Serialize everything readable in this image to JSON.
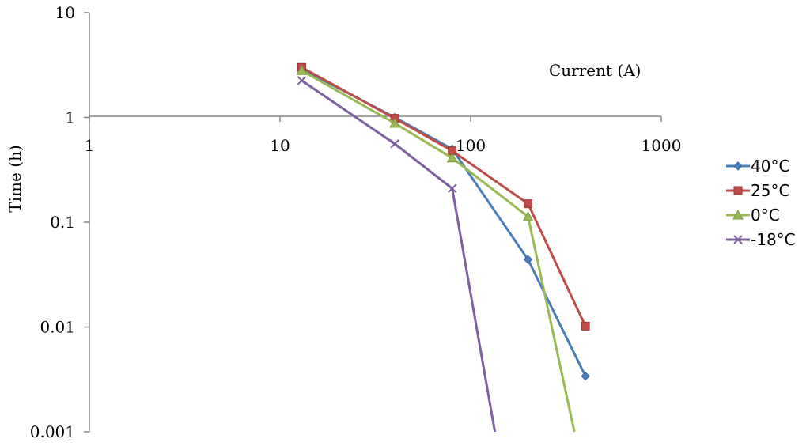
{
  "chart_data": {
    "type": "line",
    "xlabel": "Current (A)",
    "ylabel": "Time (h)",
    "x_scale": "log",
    "y_scale": "log",
    "xlim": [
      1,
      1000
    ],
    "ylim": [
      0.001,
      10
    ],
    "x_ticks": [
      "1",
      "10",
      "100",
      "1000"
    ],
    "y_ticks": [
      "10",
      "1",
      "0.1",
      "0.01",
      "0.001"
    ],
    "grid": false,
    "legend_position": "right",
    "series": [
      {
        "name": "40°C",
        "color": "#4a7ebb",
        "marker": "diamond",
        "x": [
          13,
          40,
          80,
          200,
          400
        ],
        "y": [
          2.9,
          1.0,
          0.5,
          0.044,
          0.0034
        ]
      },
      {
        "name": "25°C",
        "color": "#be4b48",
        "marker": "square",
        "x": [
          13,
          40,
          80,
          200,
          400
        ],
        "y": [
          3.0,
          0.98,
          0.48,
          0.15,
          0.0102
        ]
      },
      {
        "name": "0°C",
        "color": "#98b954",
        "marker": "triangle",
        "x": [
          13,
          40,
          80,
          200,
          350
        ],
        "y": [
          2.8,
          0.88,
          0.41,
          0.113,
          0.001
        ]
      },
      {
        "name": "-18°C",
        "color": "#7d60a0",
        "marker": "x",
        "x": [
          13,
          40,
          80,
          134
        ],
        "y": [
          2.25,
          0.56,
          0.21,
          0.001
        ]
      }
    ]
  }
}
